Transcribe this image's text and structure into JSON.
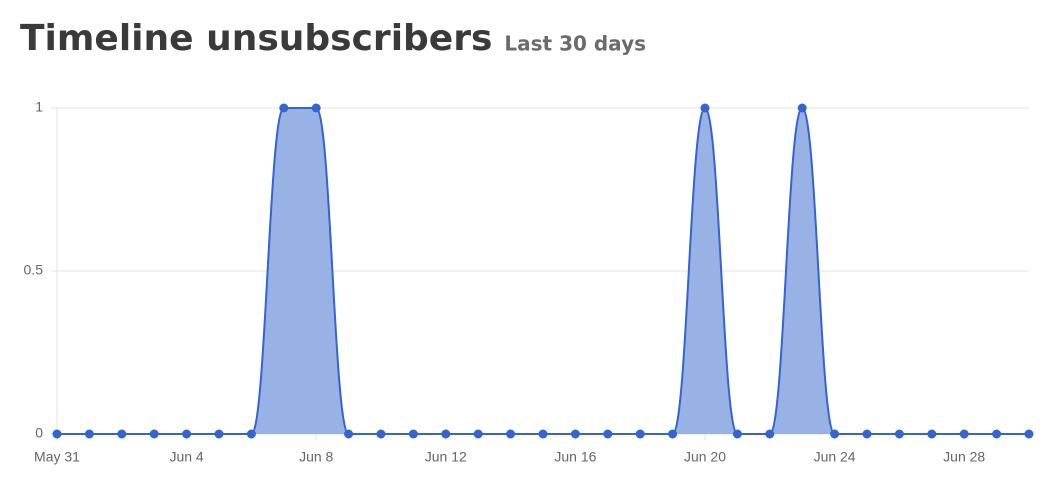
{
  "chart_data": {
    "type": "area",
    "title": "Timeline unsubscribers",
    "subtitle": "Last 30 days",
    "categories": [
      "May 31",
      null,
      null,
      null,
      "Jun 4",
      null,
      null,
      null,
      "Jun 8",
      null,
      null,
      null,
      "Jun 12",
      null,
      null,
      null,
      "Jun 16",
      null,
      null,
      null,
      "Jun 20",
      null,
      null,
      null,
      "Jun 24",
      null,
      null,
      null,
      "Jun 28",
      null,
      null
    ],
    "values": [
      0,
      0,
      0,
      0,
      0,
      0,
      0,
      1,
      1,
      0,
      0,
      0,
      0,
      0,
      0,
      0,
      0,
      0,
      0,
      0,
      1,
      0,
      0,
      1,
      0,
      0,
      0,
      0,
      0,
      0,
      0
    ],
    "color": "#3563cf",
    "fill_color": "#98b2e6",
    "ylim": [
      0,
      1
    ],
    "yticks": [
      0,
      0.5,
      1
    ],
    "grid": true
  }
}
